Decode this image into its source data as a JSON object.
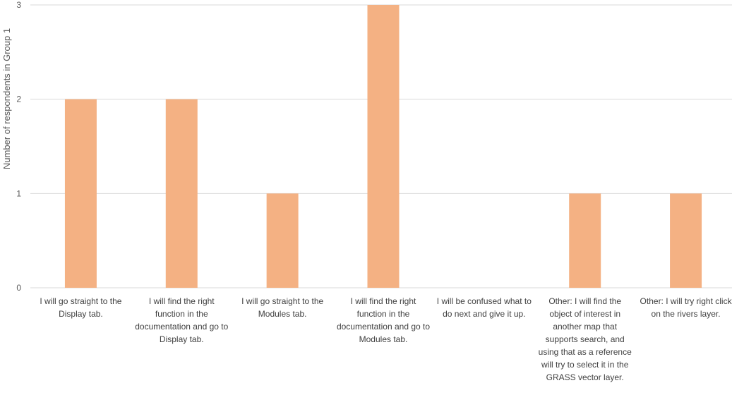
{
  "chart_data": {
    "type": "bar",
    "ylabel": "Number of respondents in Group 1",
    "xlabel": "",
    "ylim": [
      0,
      3
    ],
    "yticks": [
      "0",
      "1",
      "2",
      "3"
    ],
    "grid": true,
    "categories": [
      "I will go straight to the Display tab.",
      "I will find the right function in the documentation and go to Display tab.",
      "I will go straight to the Modules tab.",
      "I will find the right function in the documentation and go to Modules tab.",
      "I will be confused what to do next and give it up.",
      "Other: I will find the object of interest in another map that supports search, and using that as a reference will try to select it in the GRASS vector layer.",
      "Other: I will try right click on the rivers layer."
    ],
    "values": [
      2,
      2,
      1,
      3,
      0,
      1,
      1
    ],
    "bar_color": "#F4B183",
    "grid_color": "#D9D9D9"
  }
}
